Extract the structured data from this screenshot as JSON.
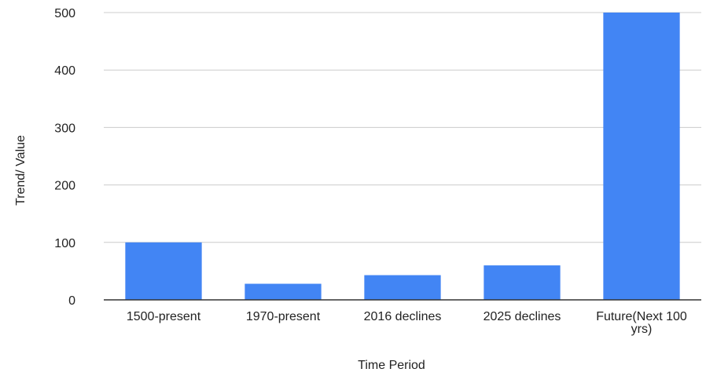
{
  "chart_data": {
    "type": "bar",
    "title": "",
    "xlabel": "Time Period",
    "ylabel": "Trend/ Value",
    "categories": [
      "1500-present",
      "1970-present",
      "2016 declines",
      "2025 declines",
      "Future(Next 100 yrs)"
    ],
    "category_lines": [
      [
        "1500-present"
      ],
      [
        "1970-present"
      ],
      [
        "2016 declines"
      ],
      [
        "2025 declines"
      ],
      [
        "Future(Next 100",
        "yrs)"
      ]
    ],
    "values": [
      100,
      28,
      43,
      60,
      500
    ],
    "ylim": [
      0,
      500
    ],
    "yticks": [
      0,
      100,
      200,
      300,
      400,
      500
    ],
    "grid": true,
    "legend": "none",
    "bar_color": "#4285f4",
    "grid_color": "#cccccc",
    "axis_color": "#333333"
  }
}
